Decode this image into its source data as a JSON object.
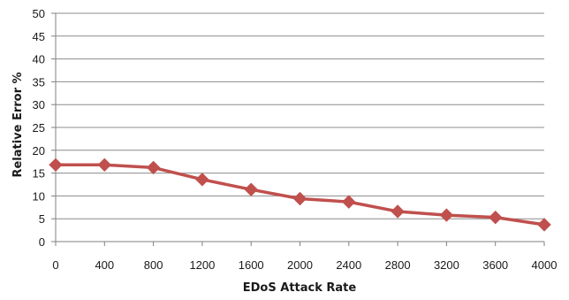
{
  "chart_data": {
    "type": "line",
    "title": "",
    "xlabel": "EDoS Attack Rate",
    "ylabel": "Relative Error %",
    "x": [
      0,
      400,
      800,
      1200,
      1600,
      2000,
      2400,
      2800,
      3200,
      3600,
      4000
    ],
    "series": [
      {
        "values": [
          16.8,
          16.8,
          16.2,
          13.6,
          11.4,
          9.4,
          8.7,
          6.6,
          5.8,
          5.3,
          3.7
        ],
        "color": "#c0504d",
        "marker": "diamond"
      }
    ],
    "xlim": [
      0,
      4000
    ],
    "ylim": [
      0,
      50
    ],
    "x_ticks": [
      "0",
      "400",
      "800",
      "1200",
      "1600",
      "2000",
      "2400",
      "2800",
      "3200",
      "3600",
      "4000"
    ],
    "y_ticks": [
      "0",
      "5",
      "10",
      "15",
      "20",
      "25",
      "30",
      "35",
      "40",
      "45",
      "50"
    ],
    "grid": "horizontal",
    "legend": "none"
  }
}
